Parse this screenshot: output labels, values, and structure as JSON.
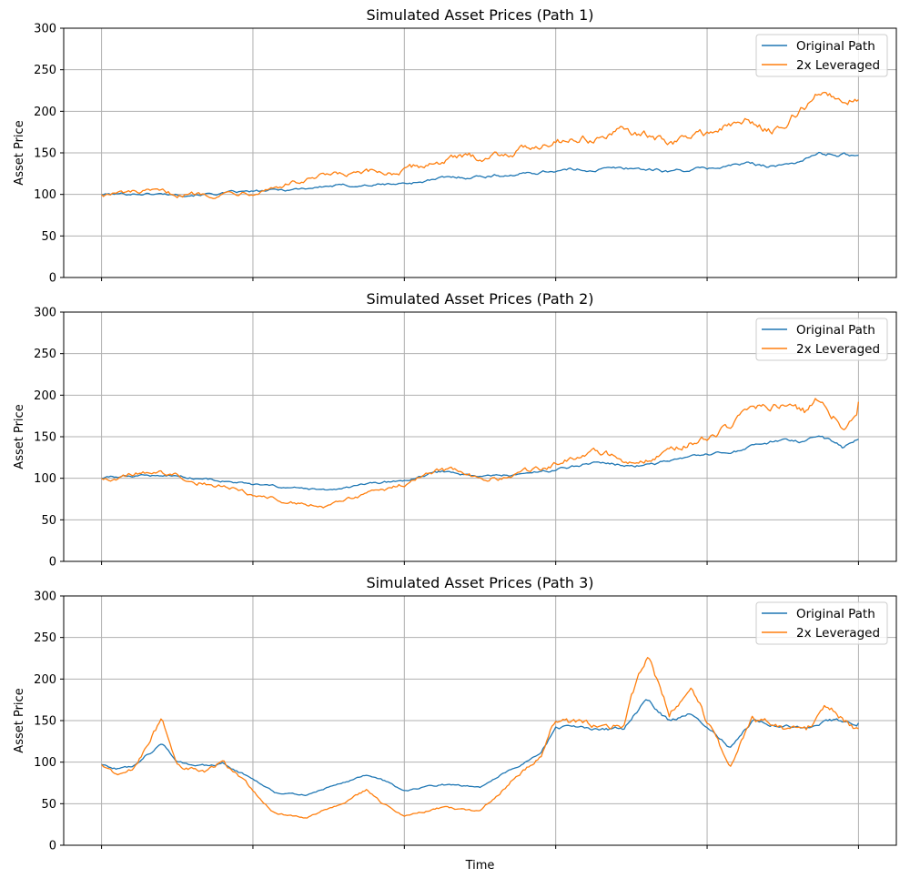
{
  "colors": {
    "original": "#1f77b4",
    "leveraged": "#ff7f0e"
  },
  "chart_data": [
    {
      "type": "line",
      "title": "Simulated Asset Prices (Path 1)",
      "ylabel": "Asset Price",
      "xlabel": "",
      "ylim": [
        0,
        300
      ],
      "xlim": [
        -0.05,
        1.05
      ],
      "yticks": [
        0,
        50,
        100,
        150,
        200,
        250,
        300
      ],
      "xticks": [
        0,
        0.2,
        0.4,
        0.6,
        0.8,
        1.0
      ],
      "grid": true,
      "legend_position": "top-right",
      "series": [
        {
          "name": "Original Path",
          "color": "#1f77b4",
          "x": [
            0,
            0.05,
            0.1,
            0.15,
            0.2,
            0.25,
            0.3,
            0.35,
            0.4,
            0.45,
            0.5,
            0.55,
            0.6,
            0.65,
            0.7,
            0.75,
            0.8,
            0.85,
            0.9,
            0.93,
            0.95,
            1.0
          ],
          "y": [
            100,
            101,
            100,
            101,
            103,
            106,
            110,
            111,
            113,
            119,
            122,
            124,
            129,
            130,
            132,
            128,
            131,
            137,
            134,
            143,
            149,
            147
          ]
        },
        {
          "name": "2x Leveraged",
          "color": "#ff7f0e",
          "x": [
            0,
            0.05,
            0.1,
            0.15,
            0.2,
            0.25,
            0.3,
            0.35,
            0.4,
            0.45,
            0.5,
            0.55,
            0.6,
            0.65,
            0.7,
            0.75,
            0.8,
            0.85,
            0.9,
            0.93,
            0.95,
            1.0
          ],
          "y": [
            100,
            102,
            100,
            101,
            105,
            113,
            121,
            124,
            128,
            141,
            145,
            153,
            167,
            168,
            175,
            162,
            175,
            187,
            176,
            207,
            221,
            214
          ]
        }
      ]
    },
    {
      "type": "line",
      "title": "Simulated Asset Prices (Path 2)",
      "ylabel": "Asset Price",
      "xlabel": "",
      "ylim": [
        0,
        300
      ],
      "xlim": [
        -0.05,
        1.05
      ],
      "yticks": [
        0,
        50,
        100,
        150,
        200,
        250,
        300
      ],
      "xticks": [
        0,
        0.2,
        0.4,
        0.6,
        0.8,
        1.0
      ],
      "grid": true,
      "legend_position": "top-right",
      "series": [
        {
          "name": "Original Path",
          "color": "#1f77b4",
          "x": [
            0,
            0.05,
            0.1,
            0.15,
            0.2,
            0.25,
            0.3,
            0.35,
            0.4,
            0.45,
            0.5,
            0.55,
            0.6,
            0.65,
            0.7,
            0.75,
            0.8,
            0.85,
            0.9,
            0.93,
            0.95,
            0.98,
            1.0
          ],
          "y": [
            100,
            104,
            103,
            98,
            92,
            88,
            85,
            92,
            97,
            108,
            102,
            104,
            110,
            120,
            114,
            120,
            127,
            134,
            147,
            141,
            150,
            136,
            147
          ]
        },
        {
          "name": "2x Leveraged",
          "color": "#ff7f0e",
          "x": [
            0,
            0.05,
            0.1,
            0.15,
            0.2,
            0.25,
            0.3,
            0.35,
            0.4,
            0.45,
            0.5,
            0.55,
            0.6,
            0.65,
            0.7,
            0.75,
            0.8,
            0.85,
            0.9,
            0.93,
            0.95,
            0.98,
            1.0
          ],
          "y": [
            100,
            106,
            104,
            93,
            81,
            72,
            66,
            82,
            92,
            111,
            99,
            103,
            117,
            136,
            118,
            134,
            150,
            172,
            192,
            180,
            198,
            165,
            192
          ]
        }
      ]
    },
    {
      "type": "line",
      "title": "Simulated Asset Prices (Path 3)",
      "ylabel": "Asset Price",
      "xlabel": "Time",
      "ylim": [
        0,
        300
      ],
      "xlim": [
        -0.05,
        1.05
      ],
      "yticks": [
        0,
        50,
        100,
        150,
        200,
        250,
        300
      ],
      "xticks": [
        0,
        0.2,
        0.4,
        0.6,
        0.8,
        1.0
      ],
      "grid": true,
      "legend_position": "top-right",
      "series": [
        {
          "name": "Original Path",
          "color": "#1f77b4",
          "x": [
            0,
            0.02,
            0.04,
            0.06,
            0.08,
            0.1,
            0.12,
            0.14,
            0.16,
            0.2,
            0.23,
            0.27,
            0.3,
            0.35,
            0.38,
            0.4,
            0.45,
            0.5,
            0.55,
            0.58,
            0.6,
            0.63,
            0.66,
            0.69,
            0.72,
            0.75,
            0.78,
            0.8,
            0.83,
            0.86,
            0.9,
            0.93,
            0.96,
            1.0
          ],
          "y": [
            97,
            92,
            95,
            110,
            122,
            102,
            97,
            95,
            98,
            80,
            64,
            60,
            70,
            85,
            75,
            65,
            73,
            70,
            96,
            110,
            143,
            140,
            138,
            140,
            175,
            150,
            160,
            140,
            118,
            150,
            145,
            140,
            150,
            147
          ]
        },
        {
          "name": "2x Leveraged",
          "color": "#ff7f0e",
          "x": [
            0,
            0.02,
            0.04,
            0.06,
            0.08,
            0.1,
            0.12,
            0.14,
            0.16,
            0.2,
            0.23,
            0.27,
            0.3,
            0.35,
            0.38,
            0.4,
            0.45,
            0.5,
            0.55,
            0.58,
            0.6,
            0.63,
            0.66,
            0.69,
            0.72,
            0.75,
            0.78,
            0.8,
            0.83,
            0.86,
            0.9,
            0.93,
            0.96,
            1.0
          ],
          "y": [
            97,
            85,
            90,
            118,
            152,
            100,
            92,
            88,
            100,
            65,
            38,
            32,
            45,
            65,
            45,
            35,
            45,
            40,
            85,
            105,
            150,
            145,
            140,
            145,
            230,
            160,
            190,
            150,
            92,
            155,
            140,
            135,
            165,
            140
          ]
        }
      ]
    }
  ]
}
